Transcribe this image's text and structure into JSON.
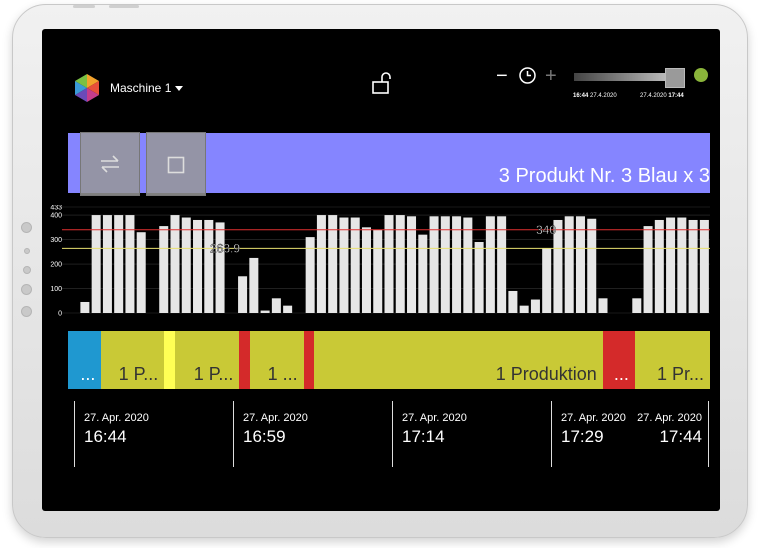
{
  "header": {
    "machine_label": "Maschine 1",
    "time_start": "16:44",
    "date_start": "27.4.2020",
    "date_end": "27.4.2020",
    "time_end": "17:44",
    "zoom_out": "−",
    "zoom_in": "+"
  },
  "product_bar": {
    "label": "3 Produkt Nr. 3 Blau x 3",
    "color": "#8585ff"
  },
  "chart_data": {
    "type": "bar",
    "y_ticks": [
      "433",
      "400",
      "300",
      "200",
      "100",
      "0"
    ],
    "ylim": [
      0,
      433
    ],
    "reference_lines": [
      {
        "value": 340,
        "label": "340",
        "color": "#e03030"
      },
      {
        "value": 263.9,
        "label": "263.9",
        "color": "#e8e070"
      }
    ],
    "values": [
      0,
      45,
      400,
      400,
      400,
      400,
      330,
      0,
      355,
      400,
      390,
      380,
      380,
      370,
      0,
      150,
      225,
      10,
      60,
      30,
      0,
      310,
      400,
      400,
      390,
      390,
      350,
      340,
      400,
      400,
      395,
      320,
      395,
      395,
      395,
      390,
      290,
      395,
      395,
      90,
      30,
      55,
      265,
      380,
      395,
      395,
      385,
      60,
      0,
      0,
      60,
      355,
      380,
      390,
      390,
      380,
      380
    ]
  },
  "timeline": {
    "segments": [
      {
        "label": "...",
        "color": "#1f98d0",
        "start": 0,
        "end": 0.052
      },
      {
        "label": "1 P...",
        "color": "#c9c936",
        "start": 0.052,
        "end": 0.15
      },
      {
        "label": "",
        "color": "#ffff55",
        "start": 0.15,
        "end": 0.167
      },
      {
        "label": "1 P...",
        "color": "#c9c936",
        "start": 0.167,
        "end": 0.267
      },
      {
        "label": "",
        "color": "#d42a2a",
        "start": 0.267,
        "end": 0.283
      },
      {
        "label": "1 ...",
        "color": "#c9c936",
        "start": 0.283,
        "end": 0.367
      },
      {
        "label": "",
        "color": "#d42a2a",
        "start": 0.367,
        "end": 0.383
      },
      {
        "label": "1 Produktion",
        "color": "#c9c936",
        "start": 0.383,
        "end": 0.833
      },
      {
        "label": "...",
        "color": "#d42a2a",
        "start": 0.833,
        "end": 0.883
      },
      {
        "label": "1 Pr...",
        "color": "#c9c936",
        "start": 0.883,
        "end": 1.0
      }
    ]
  },
  "time_axis": [
    {
      "date": "27. Apr. 2020",
      "time": "16:44"
    },
    {
      "date": "27. Apr. 2020",
      "time": "16:59"
    },
    {
      "date": "27. Apr. 2020",
      "time": "17:14"
    },
    {
      "date": "27. Apr. 2020",
      "time": "17:29"
    },
    {
      "date": "27. Apr. 2020",
      "time": "17:44"
    }
  ]
}
